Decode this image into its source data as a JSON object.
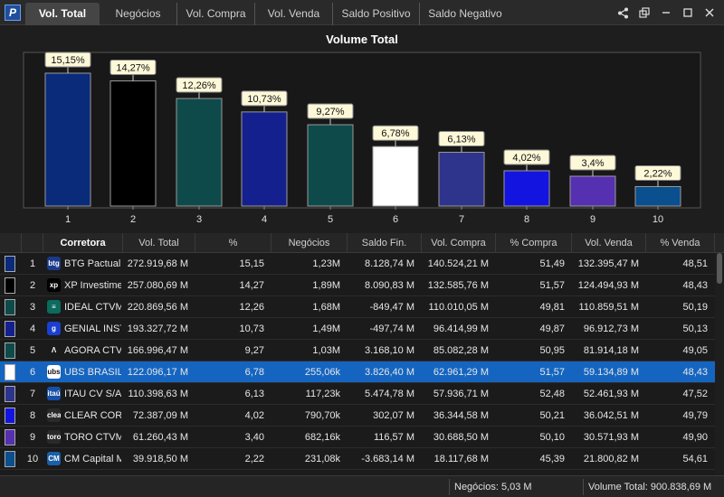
{
  "tabs": [
    {
      "label": "Vol. Total",
      "active": true
    },
    {
      "label": "Negócios",
      "active": false
    },
    {
      "label": "Vol. Compra",
      "active": false
    },
    {
      "label": "Vol. Venda",
      "active": false
    },
    {
      "label": "Saldo Positivo",
      "active": false
    },
    {
      "label": "Saldo Negativo",
      "active": false
    }
  ],
  "logo": "P",
  "chart_data": {
    "type": "bar",
    "title": "Volume Total",
    "categories": [
      "1",
      "2",
      "3",
      "4",
      "5",
      "6",
      "7",
      "8",
      "9",
      "10"
    ],
    "values": [
      15.15,
      14.27,
      12.26,
      10.73,
      9.27,
      6.78,
      6.13,
      4.02,
      3.4,
      2.22
    ],
    "value_labels": [
      "15,15%",
      "14,27%",
      "12,26%",
      "10,73%",
      "9,27%",
      "6,78%",
      "6,13%",
      "4,02%",
      "3,4%",
      "2,22%"
    ],
    "colors": [
      "#0a2a7a",
      "#000000",
      "#0e4a4a",
      "#14208e",
      "#0e4a4a",
      "#ffffff",
      "#2e338c",
      "#1414e0",
      "#5530b0",
      "#0a4f8e"
    ],
    "ylim": [
      0,
      17
    ],
    "grid": false,
    "legend": "none"
  },
  "table": {
    "columns": [
      "",
      "",
      "Corretora",
      "Vol. Total",
      "%",
      "Negócios",
      "Saldo Fin.",
      "Vol. Compra",
      "% Compra",
      "Vol. Venda",
      "% Venda"
    ],
    "rows": [
      {
        "rank": "1",
        "icon": "btg",
        "icon_color": "#1a3a8a",
        "broker": "BTG Pactual C",
        "vol_total": "272.919,68 M",
        "pct": "15,15",
        "negocios": "1,23M",
        "saldo_fin": "8.128,74 M",
        "vol_compra": "140.524,21 M",
        "pct_compra": "51,49",
        "vol_venda": "132.395,47 M",
        "pct_venda": "48,51",
        "swatch": "#0a2a7a"
      },
      {
        "rank": "2",
        "icon": "xp",
        "icon_color": "#000000",
        "broker": "XP Investime",
        "vol_total": "257.080,69 M",
        "pct": "14,27",
        "negocios": "1,89M",
        "saldo_fin": "8.090,83 M",
        "vol_compra": "132.585,76 M",
        "pct_compra": "51,57",
        "vol_venda": "124.494,93 M",
        "pct_venda": "48,43",
        "swatch": "#000000"
      },
      {
        "rank": "3",
        "icon": "≡",
        "icon_color": "#0b6b5e",
        "broker": "IDEAL CTVM",
        "vol_total": "220.869,56 M",
        "pct": "12,26",
        "negocios": "1,68M",
        "saldo_fin": "-849,47 M",
        "vol_compra": "110.010,05 M",
        "pct_compra": "49,81",
        "vol_venda": "110.859,51 M",
        "pct_venda": "50,19",
        "swatch": "#0e4a4a"
      },
      {
        "rank": "4",
        "icon": "g",
        "icon_color": "#1a3fd0",
        "broker": "GENIAL INST",
        "vol_total": "193.327,72 M",
        "pct": "10,73",
        "negocios": "1,49M",
        "saldo_fin": "-497,74 M",
        "vol_compra": "96.414,99 M",
        "pct_compra": "49,87",
        "vol_venda": "96.912,73 M",
        "pct_venda": "50,13",
        "swatch": "#14208e"
      },
      {
        "rank": "5",
        "icon": "Λ",
        "icon_color": "#1b1b1b",
        "broker": "AGORA CTVM",
        "vol_total": "166.996,47 M",
        "pct": "9,27",
        "negocios": "1,03M",
        "saldo_fin": "3.168,10 M",
        "vol_compra": "85.082,28 M",
        "pct_compra": "50,95",
        "vol_venda": "81.914,18 M",
        "pct_venda": "49,05",
        "swatch": "#0e4a4a"
      },
      {
        "rank": "6",
        "icon": "ubs",
        "icon_color": "#ffffff",
        "broker": "UBS BRASIL C",
        "vol_total": "122.096,17 M",
        "pct": "6,78",
        "negocios": "255,06k",
        "saldo_fin": "3.826,40 M",
        "vol_compra": "62.961,29 M",
        "pct_compra": "51,57",
        "vol_venda": "59.134,89 M",
        "pct_venda": "48,43",
        "swatch": "#ffffff",
        "selected": true
      },
      {
        "rank": "7",
        "icon": "itaú",
        "icon_color": "#1650a8",
        "broker": "ITAU CV S/A",
        "vol_total": "110.398,63 M",
        "pct": "6,13",
        "negocios": "117,23k",
        "saldo_fin": "5.474,78 M",
        "vol_compra": "57.936,71 M",
        "pct_compra": "52,48",
        "vol_venda": "52.461,93 M",
        "pct_venda": "47,52",
        "swatch": "#2e338c"
      },
      {
        "rank": "8",
        "icon": "clear",
        "icon_color": "#2a2a2a",
        "broker": "CLEAR CORR",
        "vol_total": "72.387,09 M",
        "pct": "4,02",
        "negocios": "790,70k",
        "saldo_fin": "302,07 M",
        "vol_compra": "36.344,58 M",
        "pct_compra": "50,21",
        "vol_venda": "36.042,51 M",
        "pct_venda": "49,79",
        "swatch": "#1414e0"
      },
      {
        "rank": "9",
        "icon": "toro",
        "icon_color": "#2a2a2a",
        "broker": "TORO CTVM",
        "vol_total": "61.260,43 M",
        "pct": "3,40",
        "negocios": "682,16k",
        "saldo_fin": "116,57 M",
        "vol_compra": "30.688,50 M",
        "pct_compra": "50,10",
        "vol_venda": "30.571,93 M",
        "pct_venda": "49,90",
        "swatch": "#5530b0"
      },
      {
        "rank": "10",
        "icon": "CM",
        "icon_color": "#1a5fa8",
        "broker": "CM Capital M",
        "vol_total": "39.918,50 M",
        "pct": "2,22",
        "negocios": "231,08k",
        "saldo_fin": "-3.683,14 M",
        "vol_compra": "18.117,68 M",
        "pct_compra": "45,39",
        "vol_venda": "21.800,82 M",
        "pct_venda": "54,61",
        "swatch": "#0a4f8e"
      }
    ]
  },
  "status": {
    "negocios": "Negócios: 5,03 M",
    "volume_total": "Volume Total: 900.838,69 M"
  }
}
